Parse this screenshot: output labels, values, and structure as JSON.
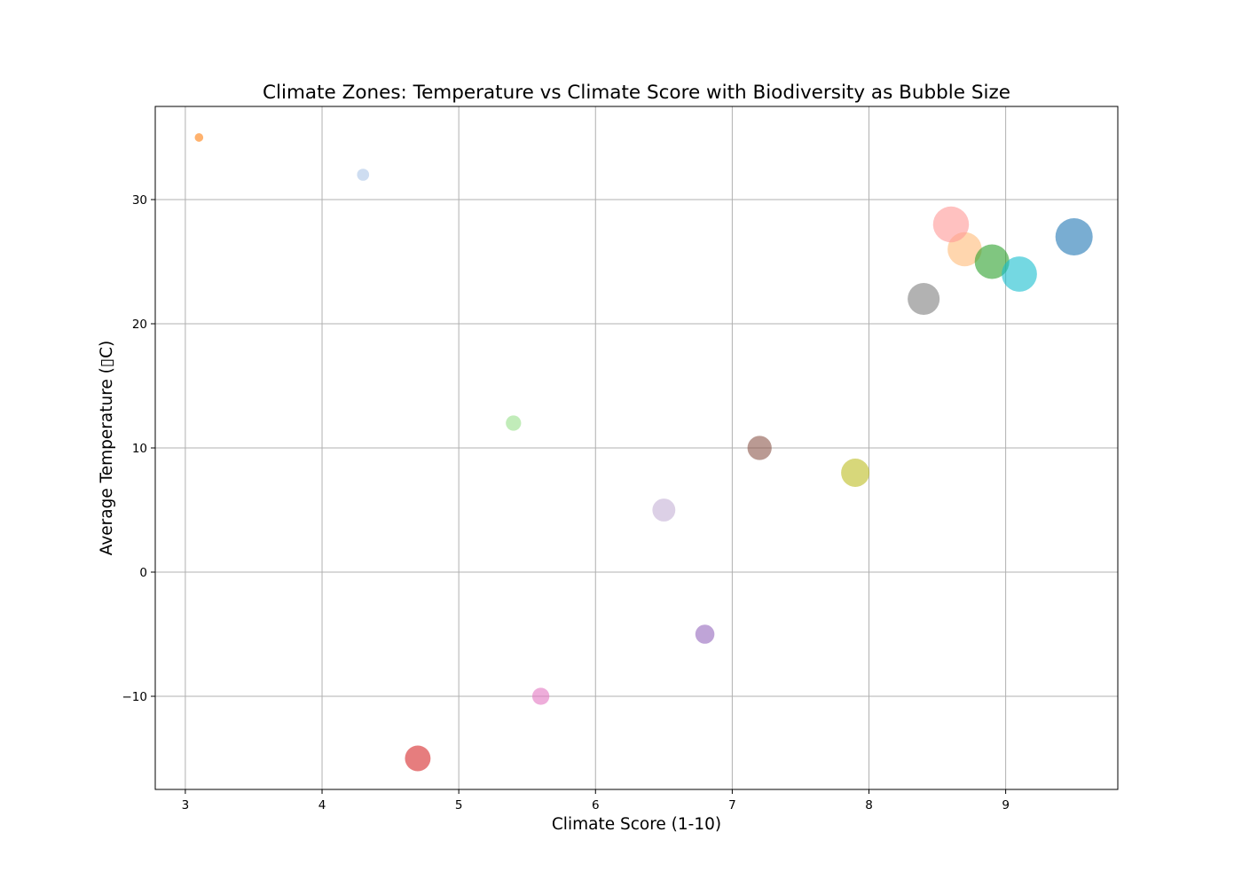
{
  "chart_data": {
    "type": "scatter",
    "title": "Climate Zones: Temperature vs Climate Score with Biodiversity as Bubble Size",
    "xlabel": "Climate Score (1-10)",
    "ylabel": "Average Temperature (▯C)",
    "xlim": [
      2.78,
      9.82
    ],
    "ylim": [
      -17.5,
      37.5
    ],
    "xticks": [
      3,
      4,
      5,
      6,
      7,
      8,
      9
    ],
    "yticks": [
      -10,
      0,
      10,
      20,
      30
    ],
    "grid": true,
    "bubble_alpha": 0.6,
    "points": [
      {
        "x": 9.5,
        "y": 27,
        "size": 95,
        "color": "#1f77b4"
      },
      {
        "x": 8.7,
        "y": 26,
        "size": 80,
        "color": "#ffbb78"
      },
      {
        "x": 8.9,
        "y": 25,
        "size": 82,
        "color": "#2ca02c"
      },
      {
        "x": 4.7,
        "y": -15,
        "size": 45,
        "color": "#d62728"
      },
      {
        "x": 6.8,
        "y": -5,
        "size": 25,
        "color": "#9467bd"
      },
      {
        "x": 7.2,
        "y": 10,
        "size": 40,
        "color": "#8c564b"
      },
      {
        "x": 5.6,
        "y": -10,
        "size": 20,
        "color": "#e377c2"
      },
      {
        "x": 8.4,
        "y": 22,
        "size": 70,
        "color": "#7f7f7f"
      },
      {
        "x": 7.9,
        "y": 8,
        "size": 55,
        "color": "#bcbd22"
      },
      {
        "x": 9.1,
        "y": 24,
        "size": 85,
        "color": "#17becf"
      },
      {
        "x": 4.3,
        "y": 32,
        "size": 10,
        "color": "#aec7e8"
      },
      {
        "x": 3.1,
        "y": 35,
        "size": 5,
        "color": "#ff7f0e"
      },
      {
        "x": 5.4,
        "y": 12,
        "size": 16,
        "color": "#98df8a"
      },
      {
        "x": 8.6,
        "y": 28,
        "size": 88,
        "color": "#ff9896"
      },
      {
        "x": 6.5,
        "y": 5,
        "size": 36,
        "color": "#c5b0d5"
      }
    ]
  }
}
